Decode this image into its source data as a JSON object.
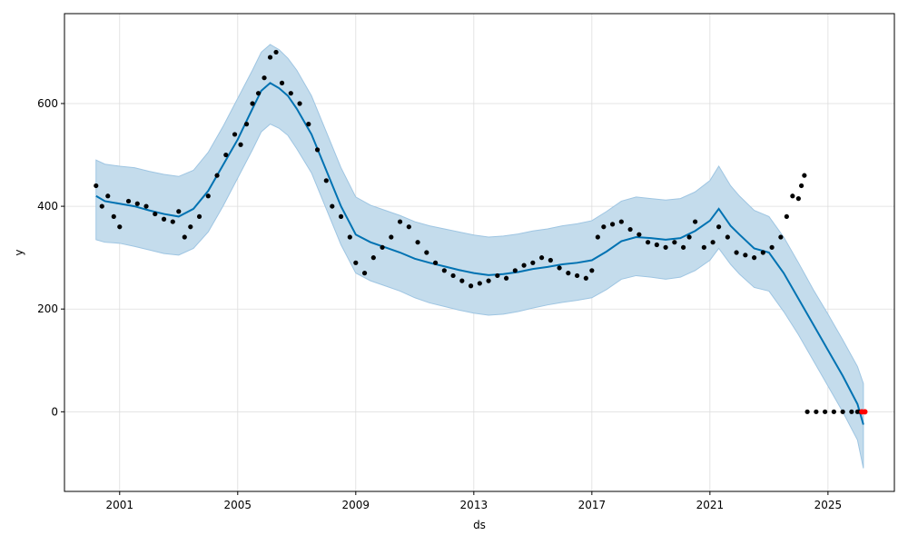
{
  "chart_data": {
    "type": "line",
    "title": "",
    "xlabel": "ds",
    "ylabel": "y",
    "xlim": [
      1999.13,
      2027.25
    ],
    "ylim": [
      -155,
      775
    ],
    "x_ticks": [
      2001,
      2005,
      2009,
      2013,
      2017,
      2021,
      2025
    ],
    "y_ticks": [
      0,
      200,
      400,
      600
    ],
    "grid": true,
    "colors": {
      "forecast_line": "#0072B2",
      "uncertainty_band": "#c4dcec",
      "uncertainty_edge": "#9ec5e2",
      "observed_points": "#000000",
      "highlight_points": "#ff0000",
      "grid": "#dddddd"
    },
    "series": [
      {
        "kind": "forecast",
        "x": [
          2000.2,
          2000.5,
          2001.0,
          2001.5,
          2002.0,
          2002.5,
          2003.0,
          2003.5,
          2004.0,
          2004.5,
          2005.0,
          2005.5,
          2005.8,
          2006.1,
          2006.4,
          2006.7,
          2007.0,
          2007.5,
          2008.0,
          2008.5,
          2009.0,
          2009.5,
          2010.0,
          2010.5,
          2011.0,
          2011.5,
          2012.0,
          2012.5,
          2013.0,
          2013.5,
          2014.0,
          2014.5,
          2015.0,
          2015.5,
          2016.0,
          2016.5,
          2017.0,
          2017.5,
          2018.0,
          2018.5,
          2019.0,
          2019.5,
          2020.0,
          2020.5,
          2021.0,
          2021.3,
          2021.7,
          2022.0,
          2022.5,
          2023.0,
          2023.5,
          2024.0,
          2024.5,
          2025.0,
          2025.5,
          2026.0,
          2026.2
        ],
        "y": [
          420,
          410,
          405,
          400,
          392,
          385,
          380,
          395,
          430,
          480,
          530,
          590,
          625,
          640,
          630,
          615,
          590,
          540,
          470,
          400,
          345,
          330,
          320,
          310,
          298,
          290,
          283,
          276,
          270,
          266,
          268,
          272,
          278,
          282,
          287,
          290,
          295,
          312,
          332,
          340,
          338,
          335,
          338,
          352,
          372,
          395,
          362,
          345,
          318,
          310,
          270,
          220,
          170,
          120,
          70,
          15,
          -25
        ]
      },
      {
        "kind": "uncertainty_upper",
        "x": [
          2000.2,
          2000.5,
          2001.0,
          2001.5,
          2002.0,
          2002.5,
          2003.0,
          2003.5,
          2004.0,
          2004.5,
          2005.0,
          2005.5,
          2005.8,
          2006.1,
          2006.4,
          2006.7,
          2007.0,
          2007.5,
          2008.0,
          2008.5,
          2009.0,
          2009.5,
          2010.0,
          2010.5,
          2011.0,
          2011.5,
          2012.0,
          2012.5,
          2013.0,
          2013.5,
          2014.0,
          2014.5,
          2015.0,
          2015.5,
          2016.0,
          2016.5,
          2017.0,
          2017.5,
          2018.0,
          2018.5,
          2019.0,
          2019.5,
          2020.0,
          2020.5,
          2021.0,
          2021.3,
          2021.7,
          2022.0,
          2022.5,
          2023.0,
          2023.5,
          2024.0,
          2024.5,
          2025.0,
          2025.5,
          2026.0,
          2026.2
        ],
        "y": [
          490,
          482,
          478,
          475,
          468,
          462,
          458,
          470,
          505,
          555,
          610,
          665,
          700,
          715,
          705,
          688,
          665,
          615,
          545,
          475,
          418,
          402,
          392,
          382,
          370,
          362,
          356,
          350,
          344,
          340,
          342,
          346,
          352,
          356,
          362,
          366,
          372,
          390,
          410,
          418,
          415,
          412,
          415,
          428,
          450,
          478,
          440,
          420,
          392,
          380,
          340,
          290,
          238,
          190,
          140,
          88,
          55
        ]
      },
      {
        "kind": "uncertainty_lower",
        "x": [
          2000.2,
          2000.5,
          2001.0,
          2001.5,
          2002.0,
          2002.5,
          2003.0,
          2003.5,
          2004.0,
          2004.5,
          2005.0,
          2005.5,
          2005.8,
          2006.1,
          2006.4,
          2006.7,
          2007.0,
          2007.5,
          2008.0,
          2008.5,
          2009.0,
          2009.5,
          2010.0,
          2010.5,
          2011.0,
          2011.5,
          2012.0,
          2012.5,
          2013.0,
          2013.5,
          2014.0,
          2014.5,
          2015.0,
          2015.5,
          2016.0,
          2016.5,
          2017.0,
          2017.5,
          2018.0,
          2018.5,
          2019.0,
          2019.5,
          2020.0,
          2020.5,
          2021.0,
          2021.3,
          2021.7,
          2022.0,
          2022.5,
          2023.0,
          2023.5,
          2024.0,
          2024.5,
          2025.0,
          2025.5,
          2026.0,
          2026.2
        ],
        "y": [
          335,
          330,
          328,
          322,
          315,
          308,
          305,
          318,
          350,
          400,
          455,
          510,
          545,
          560,
          552,
          538,
          512,
          465,
          395,
          325,
          270,
          255,
          245,
          235,
          222,
          212,
          205,
          198,
          192,
          188,
          190,
          195,
          202,
          208,
          213,
          217,
          222,
          238,
          258,
          265,
          262,
          258,
          262,
          275,
          295,
          318,
          287,
          268,
          242,
          235,
          195,
          150,
          100,
          50,
          0,
          -55,
          -110
        ]
      },
      {
        "kind": "observed",
        "x": [
          2000.2,
          2000.4,
          2000.6,
          2000.8,
          2001.0,
          2001.3,
          2001.6,
          2001.9,
          2002.2,
          2002.5,
          2002.8,
          2003.0,
          2003.2,
          2003.4,
          2003.7,
          2004.0,
          2004.3,
          2004.6,
          2004.9,
          2005.1,
          2005.3,
          2005.5,
          2005.7,
          2005.9,
          2006.1,
          2006.3,
          2006.5,
          2006.8,
          2007.1,
          2007.4,
          2007.7,
          2008.0,
          2008.2,
          2008.5,
          2008.8,
          2009.0,
          2009.3,
          2009.6,
          2009.9,
          2010.2,
          2010.5,
          2010.8,
          2011.1,
          2011.4,
          2011.7,
          2012.0,
          2012.3,
          2012.6,
          2012.9,
          2013.2,
          2013.5,
          2013.8,
          2014.1,
          2014.4,
          2014.7,
          2015.0,
          2015.3,
          2015.6,
          2015.9,
          2016.2,
          2016.5,
          2016.8,
          2017.0,
          2017.2,
          2017.4,
          2017.7,
          2018.0,
          2018.3,
          2018.6,
          2018.9,
          2019.2,
          2019.5,
          2019.8,
          2020.1,
          2020.3,
          2020.5,
          2020.8,
          2021.1,
          2021.3,
          2021.6,
          2021.9,
          2022.2,
          2022.5,
          2022.8,
          2023.1,
          2023.4,
          2023.6,
          2023.8,
          2024.0,
          2024.1,
          2024.2
        ],
        "y": [
          440,
          400,
          420,
          380,
          360,
          410,
          405,
          400,
          385,
          375,
          370,
          390,
          340,
          360,
          380,
          420,
          460,
          500,
          540,
          520,
          560,
          600,
          620,
          650,
          690,
          700,
          640,
          620,
          600,
          560,
          510,
          450,
          400,
          380,
          340,
          290,
          270,
          300,
          320,
          340,
          370,
          360,
          330,
          310,
          290,
          275,
          265,
          255,
          245,
          250,
          255,
          265,
          260,
          275,
          285,
          290,
          300,
          295,
          280,
          270,
          265,
          260,
          275,
          340,
          360,
          365,
          370,
          355,
          345,
          330,
          325,
          320,
          330,
          320,
          340,
          370,
          320,
          330,
          360,
          340,
          310,
          305,
          300,
          310,
          320,
          340,
          380,
          420,
          415,
          440,
          460
        ]
      },
      {
        "kind": "future_points",
        "x": [
          2024.3,
          2024.6,
          2024.9,
          2025.2,
          2025.5,
          2025.8,
          2026.0,
          2026.1
        ],
        "y": [
          0,
          0,
          0,
          0,
          0,
          0,
          0,
          0
        ]
      },
      {
        "kind": "highlight",
        "x": [
          2026.15,
          2026.25
        ],
        "y": [
          0,
          0
        ]
      }
    ]
  }
}
